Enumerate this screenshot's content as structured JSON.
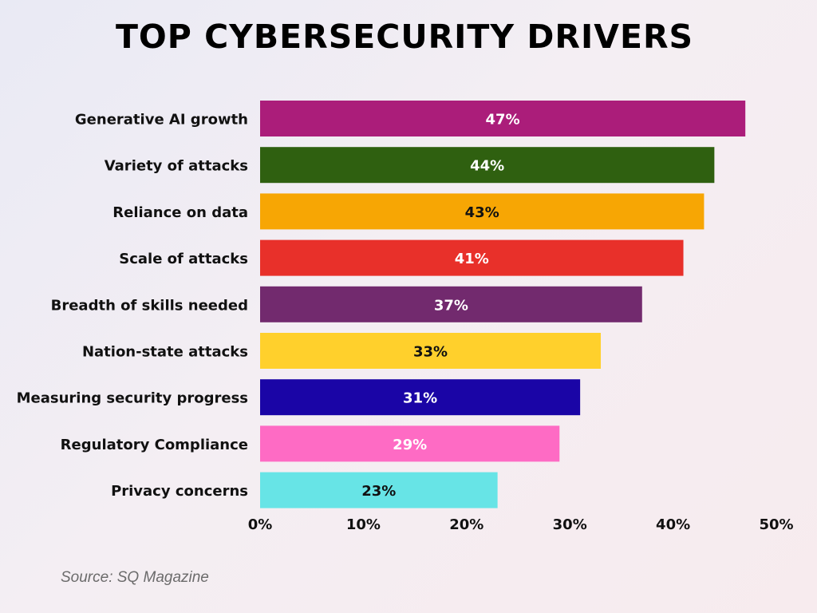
{
  "chart_data": {
    "type": "bar",
    "orientation": "horizontal",
    "title": "TOP CYBERSECURITY DRIVERS",
    "categories": [
      "Generative AI growth",
      "Variety of attacks",
      "Reliance on data",
      "Scale of attacks",
      "Breadth of skills needed",
      "Nation-state attacks",
      "Measuring security progress",
      "Regulatory Compliance",
      "Privacy concerns"
    ],
    "values": [
      47,
      44,
      43,
      41,
      37,
      33,
      31,
      29,
      23
    ],
    "value_labels": [
      "47%",
      "44%",
      "43%",
      "41%",
      "37%",
      "33%",
      "31%",
      "29%",
      "23%"
    ],
    "bar_colors": [
      "#ab1d7a",
      "#2f6010",
      "#f7a604",
      "#e8302a",
      "#722a6e",
      "#ffd02c",
      "#1a05a6",
      "#fe6bc4",
      "#67e4e6"
    ],
    "label_colors": [
      "#ffffff",
      "#ffffff",
      "#111111",
      "#ffffff",
      "#ffffff",
      "#111111",
      "#ffffff",
      "#ffffff",
      "#111111"
    ],
    "xlim": [
      0,
      50
    ],
    "xticks": [
      0,
      10,
      20,
      30,
      40,
      50
    ],
    "xtick_labels": [
      "0%",
      "10%",
      "20%",
      "30%",
      "40%",
      "50%"
    ],
    "xlabel": "",
    "ylabel": "",
    "grid": false,
    "legend": "none"
  },
  "source": "Source: SQ Magazine"
}
